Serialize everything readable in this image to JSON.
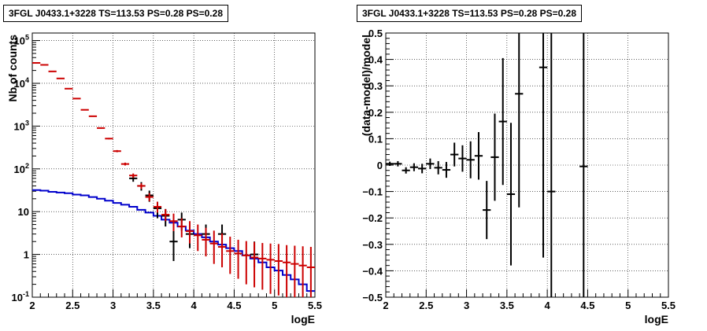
{
  "chart_data": [
    {
      "type": "histogram",
      "title": "3FGL J0433.1+3228 TS=113.53 PS=0.28 PS=0.28",
      "xlabel": "logE",
      "ylabel": "Nb of counts",
      "xlim": [
        2,
        5.5
      ],
      "ylim": [
        0.1,
        150000
      ],
      "yscale": "log",
      "grid": true,
      "xticks": [
        "2",
        "2.5",
        "3",
        "3.5",
        "4",
        "4.5",
        "5",
        "5.5"
      ],
      "yticks": [
        "10^-1",
        "1",
        "10",
        "10^2",
        "10^3",
        "10^4",
        "10^5"
      ],
      "colors": {
        "data": "#000000",
        "total_model": "#cc0000",
        "component": "#0000cc"
      },
      "series": [
        {
          "style": "points",
          "x": [
            3.25,
            3.35,
            3.45,
            3.55,
            3.65,
            3.75,
            3.85,
            3.95,
            4.15,
            4.35,
            4.75
          ],
          "y": [
            60,
            40,
            24,
            12,
            8,
            2,
            6.5,
            3,
            3,
            3,
            1
          ],
          "err_low": [
            50,
            31,
            17,
            7,
            4.5,
            0.7,
            3.6,
            1.4,
            1.4,
            1.4,
            0.5
          ],
          "err_high": [
            70,
            49,
            31,
            17,
            11.5,
            4.5,
            9.5,
            5,
            5,
            5,
            2
          ]
        },
        {
          "style": "points",
          "x": [
            2.05,
            2.15,
            2.25,
            2.35,
            2.45,
            2.55,
            2.65,
            2.75,
            2.85,
            2.95,
            3.05,
            3.15,
            3.25,
            3.35,
            3.45,
            3.55,
            3.65,
            3.75,
            3.85,
            3.95,
            4.05,
            4.15,
            4.25,
            4.35,
            4.45,
            4.55,
            4.65,
            4.75,
            4.85,
            4.95,
            5.05,
            5.15,
            5.25,
            5.35,
            5.45
          ],
          "y": [
            30000,
            27000,
            19000,
            13000,
            7500,
            4400,
            2400,
            1700,
            900,
            510,
            260,
            130,
            70,
            40,
            22,
            13,
            8.5,
            6,
            4.5,
            3.5,
            2.8,
            2.2,
            1.8,
            1.5,
            1.2,
            1.05,
            0.95,
            0.85,
            0.8,
            0.75,
            0.7,
            0.65,
            0.6,
            0.55,
            0.5
          ],
          "err_low": [
            29800,
            26800,
            18800,
            12800,
            7400,
            4330,
            2350,
            1660,
            870,
            490,
            245,
            120,
            62,
            34,
            17.5,
            9.5,
            6,
            3.5,
            2.5,
            1.8,
            1.2,
            0.9,
            0.6,
            0.5,
            0.35,
            0.27,
            0.2,
            0.17,
            0.15,
            0.12,
            0.11,
            0.1,
            0.1,
            0.1,
            0.1
          ],
          "err_high": [
            30200,
            27200,
            19200,
            13200,
            7600,
            4470,
            2450,
            1740,
            930,
            530,
            275,
            140,
            78,
            46,
            27,
            17,
            11.5,
            9,
            7,
            6,
            5,
            4.2,
            3.6,
            3.1,
            2.6,
            2.2,
            2.05,
            1.95,
            1.85,
            1.8,
            1.75,
            1.65,
            1.6,
            1.55,
            1.5
          ]
        },
        {
          "style": "step",
          "bins": [
            2.0,
            2.1,
            2.2,
            2.3,
            2.4,
            2.5,
            2.6,
            2.7,
            2.8,
            2.9,
            3.0,
            3.1,
            3.2,
            3.3,
            3.4,
            3.5,
            3.6,
            3.7,
            3.8,
            3.9,
            4.0,
            4.1,
            4.2,
            4.3,
            4.4,
            4.5,
            4.6,
            4.7,
            4.8,
            4.9,
            5.0,
            5.1,
            5.2,
            5.3,
            5.4,
            5.5
          ],
          "values": [
            32,
            31,
            29,
            28,
            27,
            25,
            24,
            22,
            20,
            18,
            16,
            14.5,
            13,
            11,
            9.5,
            8,
            6.5,
            5.5,
            4.5,
            3.6,
            3,
            2.5,
            2,
            1.7,
            1.4,
            1.2,
            0.95,
            0.8,
            0.65,
            0.5,
            0.42,
            0.33,
            0.26,
            0.2,
            0.14
          ]
        }
      ]
    },
    {
      "type": "scatter",
      "title": "3FGL J0433.1+3228 TS=113.53 PS=0.28 PS=0.28",
      "xlabel": "logE",
      "ylabel": "(data-model)/model",
      "xlim": [
        2,
        5.5
      ],
      "ylim": [
        -0.5,
        0.5
      ],
      "grid": true,
      "xticks": [
        "2",
        "2.5",
        "3",
        "3.5",
        "4",
        "4.5",
        "5",
        "5.5"
      ],
      "yticks": [
        "-0.5",
        "-0.4",
        "-0.3",
        "-0.2",
        "-0.1",
        "0",
        "0.1",
        "0.2",
        "0.3",
        "0.4",
        "0.5"
      ],
      "series": [
        {
          "color": "#000000",
          "x": [
            2.05,
            2.15,
            2.25,
            2.35,
            2.45,
            2.55,
            2.65,
            2.75,
            2.85,
            2.95,
            3.05,
            3.15,
            3.25,
            3.35,
            3.45,
            3.55,
            3.65,
            3.95,
            4.05,
            4.45
          ],
          "y": [
            0.005,
            0.005,
            -0.02,
            -0.008,
            -0.013,
            0.005,
            -0.01,
            -0.018,
            0.04,
            0.025,
            0.02,
            0.035,
            -0.17,
            0.03,
            0.165,
            -0.11,
            0.27,
            0.37,
            -0.1,
            -0.005
          ],
          "err": [
            0.008,
            0.01,
            0.012,
            0.015,
            0.018,
            0.02,
            0.025,
            0.03,
            0.045,
            0.05,
            0.07,
            0.09,
            0.11,
            0.165,
            0.24,
            0.27,
            0.43,
            0.72,
            0.65,
            0.75
          ]
        }
      ]
    }
  ]
}
